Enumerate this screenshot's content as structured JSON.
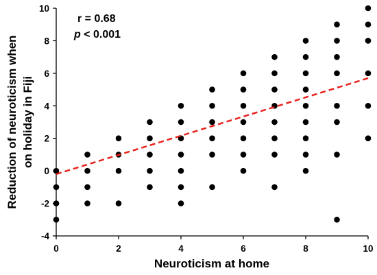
{
  "chart_data": {
    "type": "scatter",
    "xlabel": "Neuroticism at home",
    "ylabel_lines": [
      "Reduction of neuroticism when",
      "on holiday in Fiji"
    ],
    "xlim": [
      0,
      10
    ],
    "ylim": [
      -4,
      10
    ],
    "xticks": [
      0,
      2,
      4,
      6,
      8,
      10
    ],
    "yticks": [
      -4,
      -2,
      0,
      2,
      4,
      6,
      8,
      10
    ],
    "grid": false,
    "annotations": {
      "r_text": "r = 0.68",
      "p_symbol": "p",
      "p_rest": " < 0.001"
    },
    "points": [
      [
        0,
        0
      ],
      [
        0,
        -1
      ],
      [
        0,
        -2
      ],
      [
        0,
        -3
      ],
      [
        1,
        1
      ],
      [
        1,
        0
      ],
      [
        1,
        -1
      ],
      [
        1,
        -2
      ],
      [
        2,
        2
      ],
      [
        2,
        1
      ],
      [
        2,
        0
      ],
      [
        2,
        -2
      ],
      [
        3,
        3
      ],
      [
        3,
        2
      ],
      [
        3,
        1
      ],
      [
        3,
        0
      ],
      [
        3,
        -1
      ],
      [
        4,
        4
      ],
      [
        4,
        3
      ],
      [
        4,
        2
      ],
      [
        4,
        1
      ],
      [
        4,
        0
      ],
      [
        4,
        -1
      ],
      [
        4,
        -2
      ],
      [
        5,
        5
      ],
      [
        5,
        4
      ],
      [
        5,
        3
      ],
      [
        5,
        2
      ],
      [
        5,
        1
      ],
      [
        5,
        -1
      ],
      [
        6,
        6
      ],
      [
        6,
        5
      ],
      [
        6,
        4
      ],
      [
        6,
        3
      ],
      [
        6,
        2
      ],
      [
        6,
        1
      ],
      [
        6,
        0
      ],
      [
        7,
        7
      ],
      [
        7,
        6
      ],
      [
        7,
        5
      ],
      [
        7,
        4
      ],
      [
        7,
        3
      ],
      [
        7,
        2
      ],
      [
        7,
        1
      ],
      [
        7,
        -1
      ],
      [
        8,
        8
      ],
      [
        8,
        7
      ],
      [
        8,
        6
      ],
      [
        8,
        5
      ],
      [
        8,
        4
      ],
      [
        8,
        3
      ],
      [
        8,
        2
      ],
      [
        8,
        1
      ],
      [
        8,
        0
      ],
      [
        9,
        9
      ],
      [
        9,
        8
      ],
      [
        9,
        7
      ],
      [
        9,
        6
      ],
      [
        9,
        4
      ],
      [
        9,
        3
      ],
      [
        9,
        1
      ],
      [
        9,
        -3
      ],
      [
        10,
        10
      ],
      [
        10,
        9
      ],
      [
        10,
        8
      ],
      [
        10,
        6
      ],
      [
        10,
        4
      ],
      [
        10,
        2
      ]
    ],
    "trendline": {
      "x": [
        0,
        10
      ],
      "y": [
        -0.2,
        5.7
      ],
      "style": "dashed",
      "color": "#e8231f"
    },
    "marker_color": "#000000"
  }
}
